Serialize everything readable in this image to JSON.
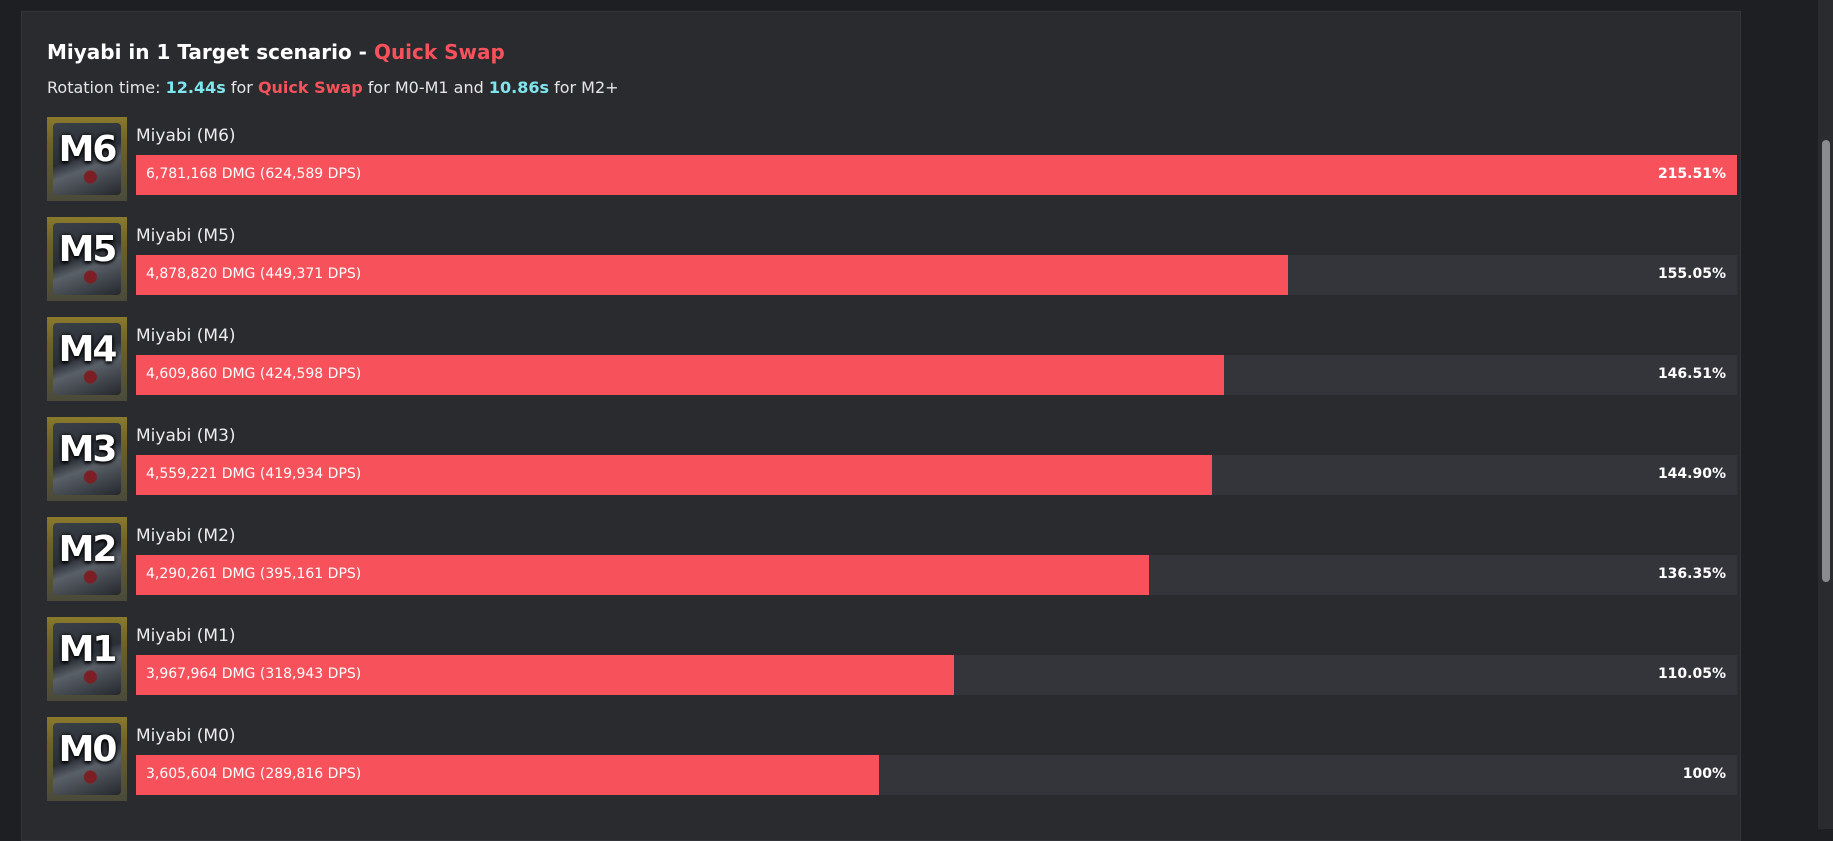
{
  "header": {
    "title_prefix": "Miyabi in 1 Target scenario - ",
    "title_highlight": "Quick Swap",
    "sub_1": "Rotation time: ",
    "sub_time_1": "12.44s",
    "sub_2": " for ",
    "sub_highlight": "Quick Swap",
    "sub_3": " for M0-M1 and ",
    "sub_time_2": "10.86s",
    "sub_4": " for M2+"
  },
  "colors": {
    "bar": "#f7515c",
    "track": "#34353a",
    "accent_cyan": "#7fe6ee",
    "accent_red": "#f7515c"
  },
  "chart_data": {
    "type": "bar",
    "orientation": "horizontal",
    "categories": [
      "Miyabi (M6)",
      "Miyabi (M5)",
      "Miyabi (M4)",
      "Miyabi (M3)",
      "Miyabi (M2)",
      "Miyabi (M1)",
      "Miyabi (M0)"
    ],
    "values": [
      215.51,
      155.05,
      146.51,
      144.9,
      136.35,
      110.05,
      100
    ],
    "xlim": [
      0,
      215.51
    ],
    "rows": [
      {
        "icon": "M6",
        "name": "Miyabi (M6)",
        "dmg_label": "6,781,168 DMG (624,589 DPS)",
        "pct_label": "215.51%",
        "value": 215.51
      },
      {
        "icon": "M5",
        "name": "Miyabi (M5)",
        "dmg_label": "4,878,820 DMG (449,371 DPS)",
        "pct_label": "155.05%",
        "value": 155.05
      },
      {
        "icon": "M4",
        "name": "Miyabi (M4)",
        "dmg_label": "4,609,860 DMG (424,598 DPS)",
        "pct_label": "146.51%",
        "value": 146.51
      },
      {
        "icon": "M3",
        "name": "Miyabi (M3)",
        "dmg_label": "4,559,221 DMG (419,934 DPS)",
        "pct_label": "144.90%",
        "value": 144.9
      },
      {
        "icon": "M2",
        "name": "Miyabi (M2)",
        "dmg_label": "4,290,261 DMG (395,161 DPS)",
        "pct_label": "136.35%",
        "value": 136.35
      },
      {
        "icon": "M1",
        "name": "Miyabi (M1)",
        "dmg_label": "3,967,964 DMG (318,943 DPS)",
        "pct_label": "110.05%",
        "value": 110.05
      },
      {
        "icon": "M0",
        "name": "Miyabi (M0)",
        "dmg_label": "3,605,604 DMG (289,816 DPS)",
        "pct_label": "100%",
        "value": 100
      }
    ]
  }
}
